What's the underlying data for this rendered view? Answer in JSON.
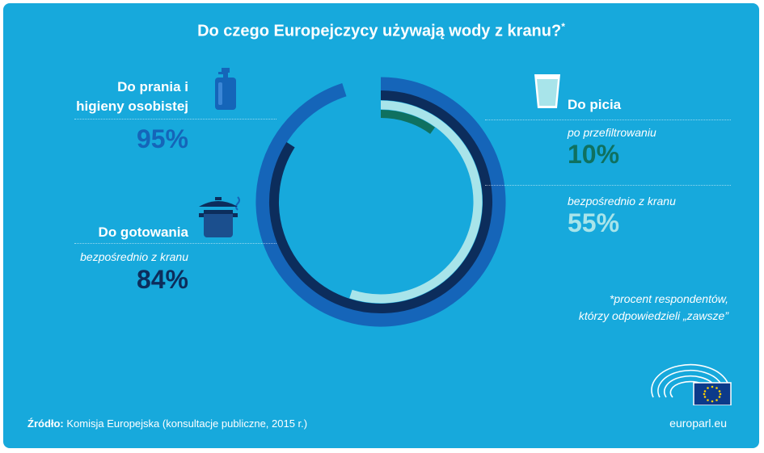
{
  "title": "Do czego Europejczycy używają wody z kranu?",
  "title_mark": "*",
  "chart_data": {
    "type": "radial-bar",
    "title": "Do czego Europejczycy używają wody z kranu?",
    "series": [
      {
        "name": "Do prania i higieny osobistej",
        "value": 95,
        "color": "#1565b9"
      },
      {
        "name": "Do gotowania – bezpośrednio z kranu",
        "value": 84,
        "color": "#0c2d5c"
      },
      {
        "name": "Do picia – bezpośrednio z kranu",
        "value": 55,
        "color": "#a8e4ea"
      },
      {
        "name": "Do picia – po przefiltrowaniu",
        "value": 10,
        "color": "#0f7160"
      }
    ],
    "unit": "%",
    "max": 100
  },
  "labels": {
    "washing": {
      "title_line1": "Do prania i",
      "title_line2": "higieny osobistej",
      "value": "95%"
    },
    "cooking": {
      "title": "Do gotowania",
      "sub": "bezpośrednio z kranu",
      "value": "84%"
    },
    "drinking": {
      "title": "Do picia",
      "filtered_sub": "po przefiltrowaniu",
      "filtered_value": "10%",
      "direct_sub": "bezpośrednio z kranu",
      "direct_value": "55%"
    }
  },
  "footnote": {
    "line1": "*procent respondentów,",
    "line2": "którzy odpowiedzieli „zawsze”"
  },
  "source": {
    "label": "Źródło:",
    "text": "Komisja Europejska (konsultacje publiczne, 2015 r.)"
  },
  "site": "europarl.eu",
  "colors": {
    "background": "#17a9dc",
    "washing": "#1565b9",
    "cooking": "#0c2d5c",
    "drinking_direct": "#a8e4ea",
    "drinking_filtered": "#0f7160"
  },
  "icons": [
    "bottle-icon",
    "cooking-pot-icon",
    "water-glass-icon",
    "eu-parliament-logo"
  ]
}
